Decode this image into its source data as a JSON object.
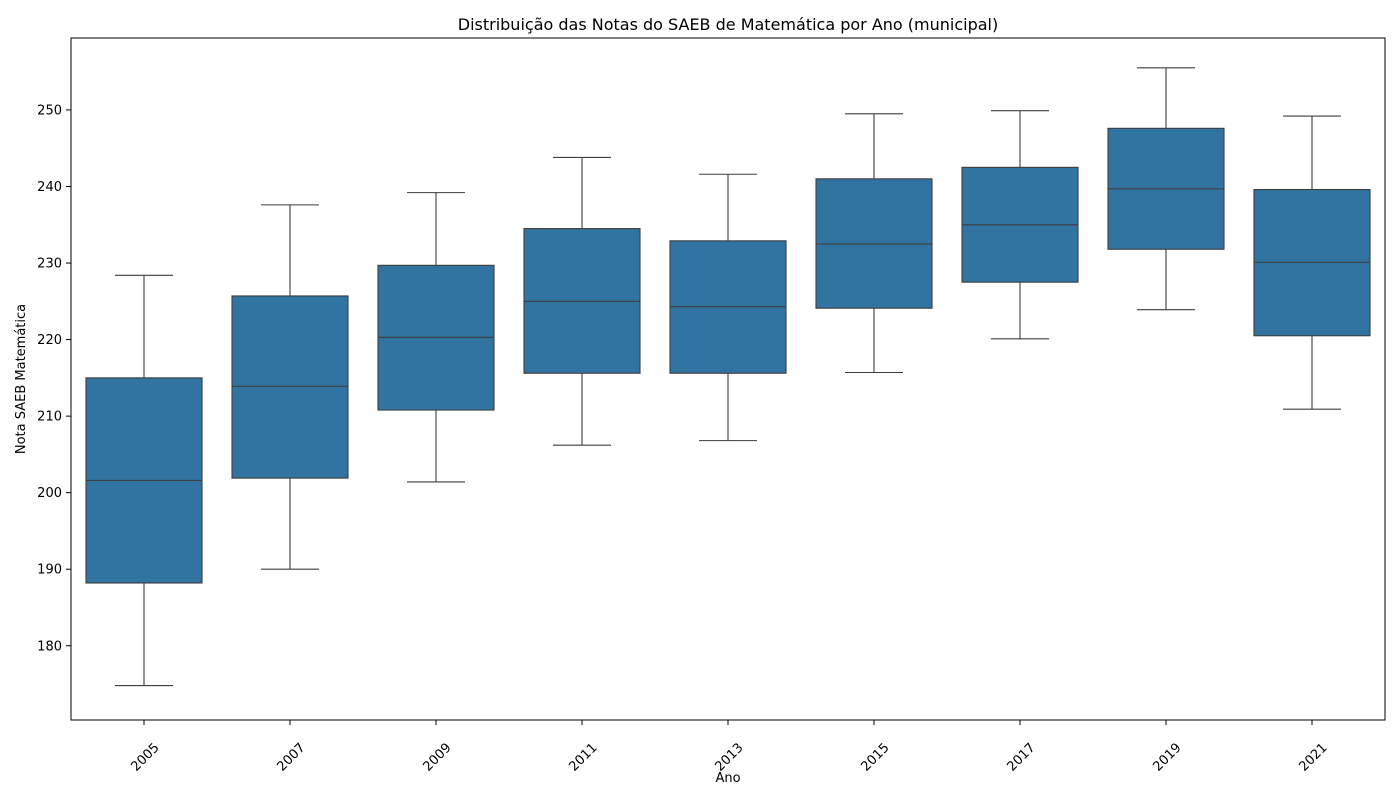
{
  "chart_data": {
    "type": "box",
    "title": "Distribuição das Notas do SAEB de Matemática por Ano (municipal)",
    "xlabel": "Ano",
    "ylabel": "Nota SAEB Matemática",
    "categories": [
      "2005",
      "2007",
      "2009",
      "2011",
      "2013",
      "2015",
      "2017",
      "2019",
      "2021"
    ],
    "ylim": [
      170.3,
      259.4
    ],
    "yticks": [
      180,
      190,
      200,
      210,
      220,
      230,
      240,
      250
    ],
    "grid": false,
    "box_color": "#3274a1",
    "line_color": "#3d3d3d",
    "series": [
      {
        "category": "2005",
        "whisker_low": 174.8,
        "q1": 188.2,
        "median": 201.6,
        "q3": 215.0,
        "whisker_high": 228.4
      },
      {
        "category": "2007",
        "whisker_low": 190.0,
        "q1": 201.9,
        "median": 213.9,
        "q3": 225.7,
        "whisker_high": 237.6
      },
      {
        "category": "2009",
        "whisker_low": 201.4,
        "q1": 210.8,
        "median": 220.3,
        "q3": 229.7,
        "whisker_high": 239.2
      },
      {
        "category": "2011",
        "whisker_low": 206.2,
        "q1": 215.6,
        "median": 225.0,
        "q3": 234.5,
        "whisker_high": 243.8
      },
      {
        "category": "2013",
        "whisker_low": 206.8,
        "q1": 215.6,
        "median": 224.3,
        "q3": 232.9,
        "whisker_high": 241.6
      },
      {
        "category": "2015",
        "whisker_low": 215.7,
        "q1": 224.1,
        "median": 232.5,
        "q3": 241.0,
        "whisker_high": 249.5
      },
      {
        "category": "2017",
        "whisker_low": 220.1,
        "q1": 227.5,
        "median": 235.0,
        "q3": 242.5,
        "whisker_high": 249.9
      },
      {
        "category": "2019",
        "whisker_low": 223.9,
        "q1": 231.8,
        "median": 239.7,
        "q3": 247.6,
        "whisker_high": 255.5
      },
      {
        "category": "2021",
        "whisker_low": 210.9,
        "q1": 220.5,
        "median": 230.1,
        "q3": 239.6,
        "whisker_high": 249.2
      }
    ]
  }
}
